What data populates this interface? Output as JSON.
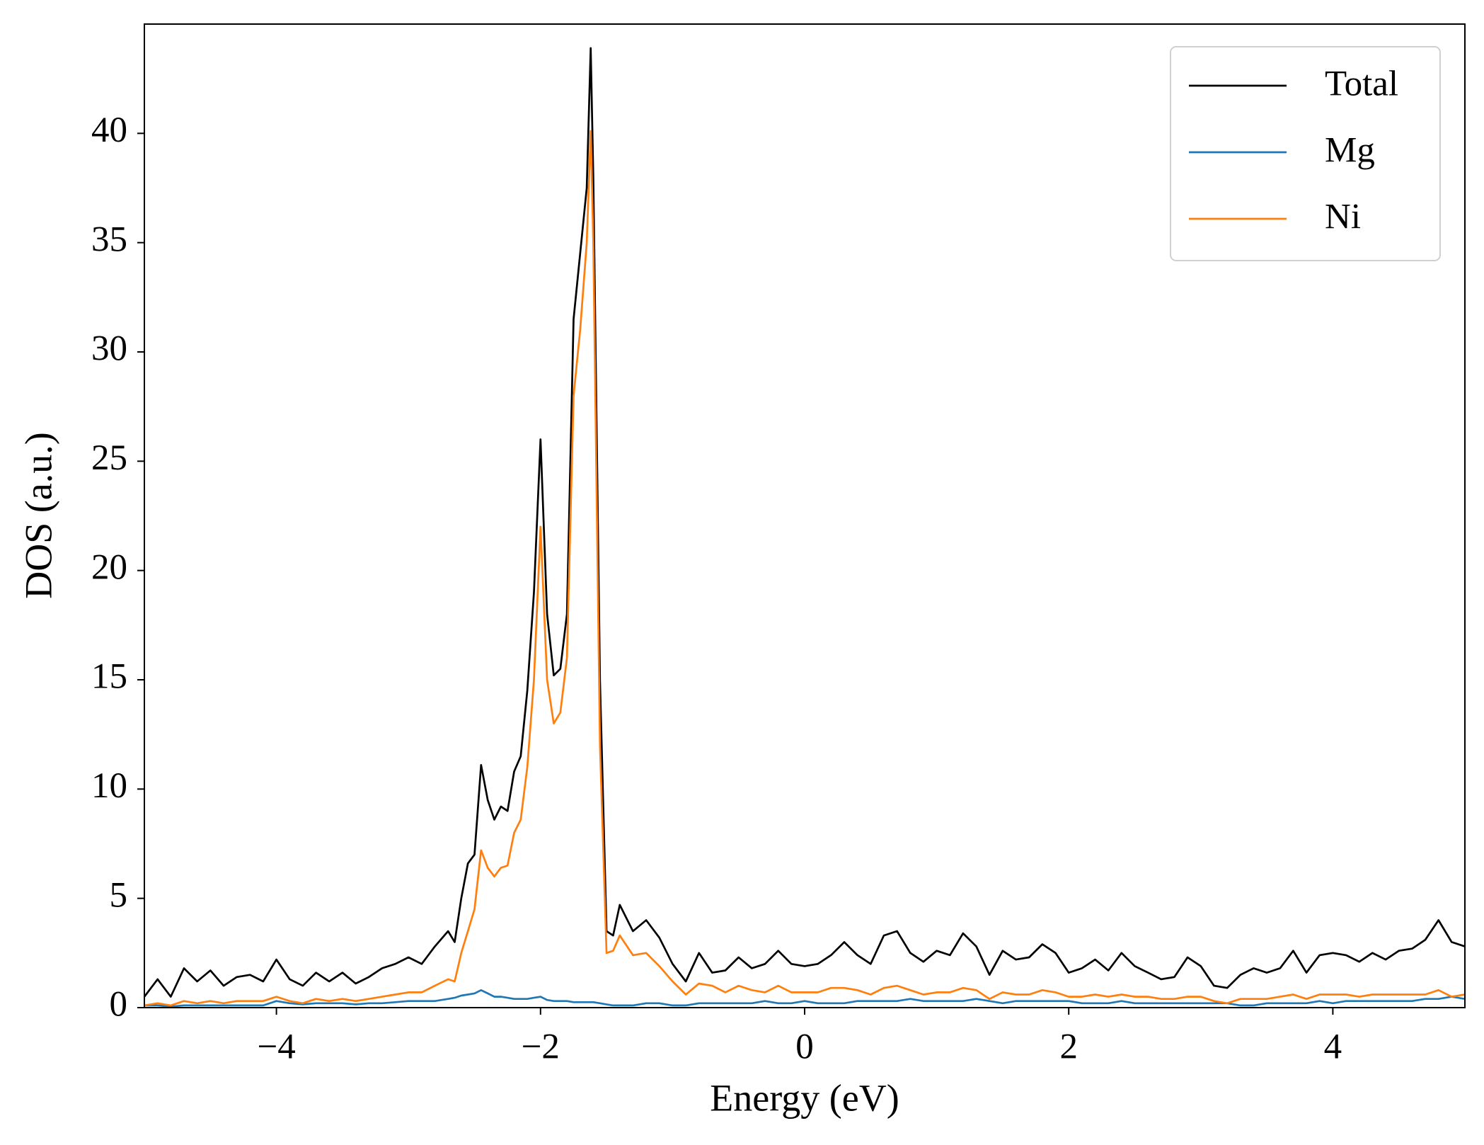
{
  "chart_data": {
    "type": "line",
    "xlabel": "Energy (eV)",
    "ylabel": "DOS (a.u.)",
    "x": [
      -5.0,
      -4.9,
      -4.8,
      -4.7,
      -4.6,
      -4.5,
      -4.4,
      -4.3,
      -4.2,
      -4.1,
      -4.0,
      -3.9,
      -3.8,
      -3.7,
      -3.6,
      -3.5,
      -3.4,
      -3.3,
      -3.2,
      -3.1,
      -3.0,
      -2.9,
      -2.8,
      -2.7,
      -2.65,
      -2.6,
      -2.55,
      -2.5,
      -2.45,
      -2.4,
      -2.35,
      -2.3,
      -2.25,
      -2.2,
      -2.15,
      -2.1,
      -2.05,
      -2.0,
      -1.95,
      -1.9,
      -1.85,
      -1.8,
      -1.75,
      -1.7,
      -1.65,
      -1.62,
      -1.6,
      -1.55,
      -1.5,
      -1.45,
      -1.4,
      -1.3,
      -1.2,
      -1.1,
      -1.0,
      -0.9,
      -0.8,
      -0.7,
      -0.6,
      -0.5,
      -0.4,
      -0.3,
      -0.2,
      -0.1,
      0.0,
      0.1,
      0.2,
      0.3,
      0.4,
      0.5,
      0.6,
      0.7,
      0.8,
      0.9,
      1.0,
      1.1,
      1.2,
      1.3,
      1.4,
      1.5,
      1.6,
      1.7,
      1.8,
      1.9,
      2.0,
      2.1,
      2.2,
      2.3,
      2.4,
      2.5,
      2.6,
      2.7,
      2.8,
      2.9,
      3.0,
      3.1,
      3.2,
      3.3,
      3.4,
      3.5,
      3.6,
      3.7,
      3.8,
      3.9,
      4.0,
      4.1,
      4.2,
      4.3,
      4.4,
      4.5,
      4.6,
      4.7,
      4.8,
      4.9,
      5.0
    ],
    "series": [
      {
        "name": "Total",
        "color": "#000000",
        "values": [
          0.5,
          1.3,
          0.5,
          1.8,
          1.2,
          1.7,
          1.0,
          1.4,
          1.5,
          1.2,
          2.2,
          1.3,
          1.0,
          1.6,
          1.2,
          1.6,
          1.1,
          1.4,
          1.8,
          2.0,
          2.3,
          2.0,
          2.8,
          3.5,
          3.0,
          5.0,
          6.6,
          7.0,
          11.1,
          9.5,
          8.6,
          9.2,
          9.0,
          10.8,
          11.5,
          14.5,
          19,
          26.0,
          18,
          15.2,
          15.5,
          18,
          31.5,
          34.5,
          37.5,
          43.9,
          38,
          15,
          3.5,
          3.3,
          4.7,
          3.5,
          4.0,
          3.2,
          2.0,
          1.2,
          2.5,
          1.6,
          1.7,
          2.3,
          1.8,
          2.0,
          2.6,
          2.0,
          1.9,
          2.0,
          2.4,
          3.0,
          2.4,
          2.0,
          3.3,
          3.5,
          2.5,
          2.1,
          2.6,
          2.4,
          3.4,
          2.8,
          1.5,
          2.6,
          2.2,
          2.3,
          2.9,
          2.5,
          1.6,
          1.8,
          2.2,
          1.7,
          2.5,
          1.9,
          1.6,
          1.3,
          1.4,
          2.3,
          1.9,
          1.0,
          0.9,
          1.5,
          1.8,
          1.6,
          1.8,
          2.6,
          1.6,
          2.4,
          2.5,
          2.4,
          2.1,
          2.5,
          2.2,
          2.6,
          2.7,
          3.1,
          4.0,
          3.0,
          2.8
        ]
      },
      {
        "name": "Mg",
        "color": "#1f77b4",
        "values": [
          0.1,
          0.1,
          0.05,
          0.1,
          0.1,
          0.1,
          0.1,
          0.1,
          0.1,
          0.1,
          0.3,
          0.2,
          0.15,
          0.2,
          0.2,
          0.2,
          0.15,
          0.2,
          0.2,
          0.25,
          0.3,
          0.3,
          0.3,
          0.4,
          0.45,
          0.55,
          0.6,
          0.65,
          0.8,
          0.65,
          0.5,
          0.5,
          0.45,
          0.4,
          0.4,
          0.4,
          0.45,
          0.5,
          0.35,
          0.3,
          0.3,
          0.3,
          0.25,
          0.25,
          0.25,
          0.25,
          0.25,
          0.2,
          0.15,
          0.1,
          0.1,
          0.1,
          0.2,
          0.2,
          0.1,
          0.1,
          0.2,
          0.2,
          0.2,
          0.2,
          0.2,
          0.3,
          0.2,
          0.2,
          0.3,
          0.2,
          0.2,
          0.2,
          0.3,
          0.3,
          0.3,
          0.3,
          0.4,
          0.3,
          0.3,
          0.3,
          0.3,
          0.4,
          0.3,
          0.2,
          0.3,
          0.3,
          0.3,
          0.3,
          0.3,
          0.2,
          0.2,
          0.2,
          0.3,
          0.2,
          0.2,
          0.2,
          0.2,
          0.2,
          0.2,
          0.2,
          0.2,
          0.1,
          0.1,
          0.2,
          0.2,
          0.2,
          0.2,
          0.3,
          0.2,
          0.3,
          0.3,
          0.3,
          0.3,
          0.3,
          0.3,
          0.4,
          0.4,
          0.5,
          0.4
        ]
      },
      {
        "name": "Ni",
        "color": "#ff7f0e",
        "values": [
          0.1,
          0.2,
          0.1,
          0.3,
          0.2,
          0.3,
          0.2,
          0.3,
          0.3,
          0.3,
          0.5,
          0.3,
          0.2,
          0.4,
          0.3,
          0.4,
          0.3,
          0.4,
          0.5,
          0.6,
          0.7,
          0.7,
          1.0,
          1.3,
          1.2,
          2.5,
          3.5,
          4.5,
          7.2,
          6.4,
          6.0,
          6.4,
          6.5,
          8.0,
          8.6,
          11,
          15,
          22,
          15,
          13,
          13.5,
          16,
          28,
          31,
          35,
          40.1,
          35,
          12,
          2.5,
          2.6,
          3.3,
          2.4,
          2.5,
          1.9,
          1.2,
          0.6,
          1.1,
          1.0,
          0.7,
          1.0,
          0.8,
          0.7,
          1.0,
          0.7,
          0.7,
          0.7,
          0.9,
          0.9,
          0.8,
          0.6,
          0.9,
          1.0,
          0.8,
          0.6,
          0.7,
          0.7,
          0.9,
          0.8,
          0.4,
          0.7,
          0.6,
          0.6,
          0.8,
          0.7,
          0.5,
          0.5,
          0.6,
          0.5,
          0.6,
          0.5,
          0.5,
          0.4,
          0.4,
          0.5,
          0.5,
          0.3,
          0.2,
          0.4,
          0.4,
          0.4,
          0.5,
          0.6,
          0.4,
          0.6,
          0.6,
          0.6,
          0.5,
          0.6,
          0.6,
          0.6,
          0.6,
          0.6,
          0.8,
          0.5,
          0.6
        ]
      }
    ],
    "xlim": [
      -5,
      5
    ],
    "xticks": [
      {
        "value": -4,
        "label": "−4"
      },
      {
        "value": -2,
        "label": "−2"
      },
      0,
      2,
      4
    ],
    "ylim": [
      0,
      45
    ],
    "yticks": [
      0,
      5,
      10,
      15,
      20,
      25,
      30,
      35,
      40
    ],
    "grid": false,
    "legend": "upper right"
  }
}
